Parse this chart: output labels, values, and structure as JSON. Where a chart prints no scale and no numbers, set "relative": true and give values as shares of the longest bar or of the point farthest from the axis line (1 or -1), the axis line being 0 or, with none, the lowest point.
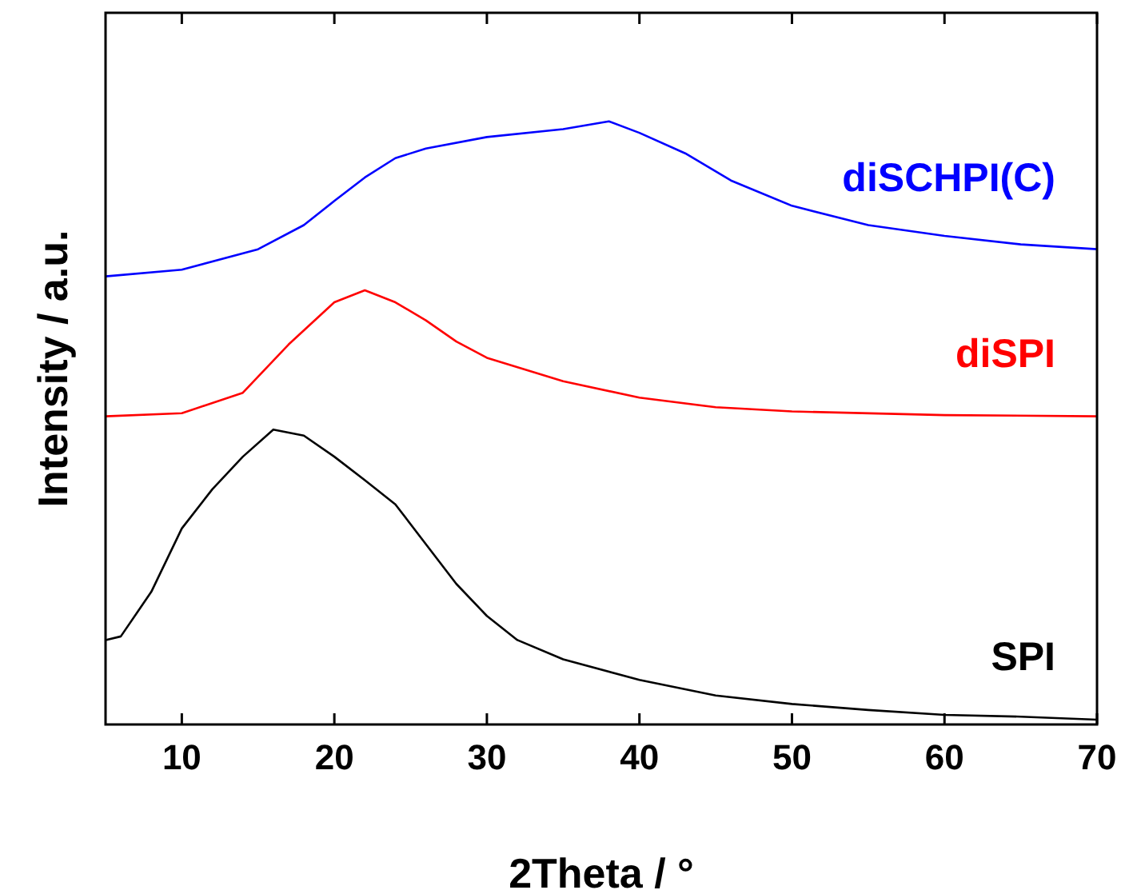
{
  "chart_data": {
    "type": "line",
    "xlabel": "2Theta / °",
    "ylabel": "Intensity / a.u.",
    "relative": true,
    "xlim": [
      5,
      70
    ],
    "xticks": [
      10,
      20,
      30,
      40,
      50,
      60,
      70
    ],
    "legend": false,
    "grid": false,
    "marker": "none",
    "line_style": "solid",
    "series": [
      {
        "name": "diSCHPI(C)",
        "color": "#0000ff",
        "x": [
          5,
          10,
          15,
          18,
          20,
          22,
          24,
          26,
          30,
          35,
          38,
          40,
          43,
          46,
          50,
          55,
          60,
          65,
          70
        ],
        "values": [
          0.743,
          0.754,
          0.788,
          0.828,
          0.868,
          0.907,
          0.939,
          0.955,
          0.974,
          0.987,
          1,
          0.981,
          0.947,
          0.902,
          0.86,
          0.828,
          0.81,
          0.796,
          0.788
        ]
      },
      {
        "name": "diSPI",
        "color": "#ff0000",
        "x": [
          5,
          10,
          14,
          17,
          20,
          22,
          24,
          26,
          28,
          30,
          35,
          40,
          45,
          50,
          60,
          70
        ],
        "values": [
          0.511,
          0.516,
          0.55,
          0.63,
          0.7,
          0.72,
          0.7,
          0.67,
          0.635,
          0.608,
          0.569,
          0.542,
          0.526,
          0.519,
          0.513,
          0.511
        ]
      },
      {
        "name": "SPI",
        "color": "#000000",
        "x": [
          5,
          6,
          8,
          10,
          12,
          14,
          16,
          18,
          20,
          22,
          24,
          26,
          28,
          30,
          32,
          35,
          40,
          45,
          50,
          55,
          60,
          65,
          70
        ],
        "values": [
          0.14,
          0.146,
          0.22,
          0.325,
          0.39,
          0.444,
          0.489,
          0.479,
          0.444,
          0.405,
          0.365,
          0.299,
          0.233,
          0.18,
          0.14,
          0.108,
          0.074,
          0.048,
          0.034,
          0.024,
          0.016,
          0.013,
          0.008
        ]
      }
    ]
  }
}
